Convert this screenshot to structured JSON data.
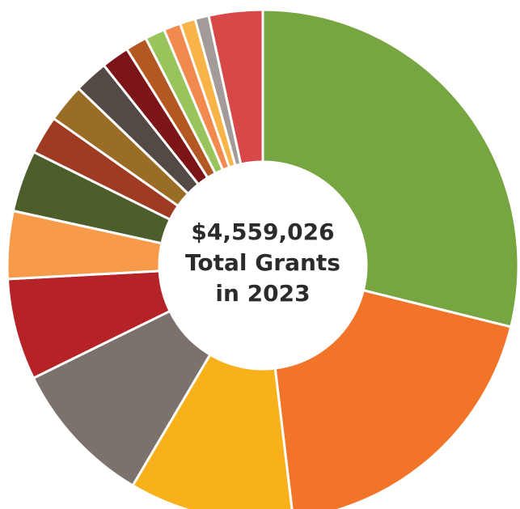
{
  "center": {
    "line1": "$4,559,026",
    "line2": "Total Grants",
    "line3": "in 2023"
  },
  "chart_data": {
    "type": "pie",
    "variant": "donut",
    "title": "",
    "start_angle_deg": 0,
    "direction": "clockwise",
    "slices": [
      {
        "value": 29.7,
        "color": "#76a541"
      },
      {
        "value": 19.8,
        "color": "#f27429"
      },
      {
        "value": 10.7,
        "color": "#f8b11b"
      },
      {
        "value": 9.5,
        "color": "#7b716d"
      },
      {
        "value": 6.6,
        "color": "#b52326"
      },
      {
        "value": 4.4,
        "color": "#f79a4a"
      },
      {
        "value": 4.0,
        "color": "#4b5e2b"
      },
      {
        "value": 2.5,
        "color": "#9f3a23"
      },
      {
        "value": 2.5,
        "color": "#9a6d27"
      },
      {
        "value": 2.2,
        "color": "#534a46"
      },
      {
        "value": 1.8,
        "color": "#7b1517"
      },
      {
        "value": 1.4,
        "color": "#b35822"
      },
      {
        "value": 1.3,
        "color": "#98c45b"
      },
      {
        "value": 1.1,
        "color": "#f28a50"
      },
      {
        "value": 1.0,
        "color": "#f8b448"
      },
      {
        "value": 0.9,
        "color": "#a29b97"
      },
      {
        "value": 3.5,
        "color": "#d94848"
      }
    ]
  }
}
